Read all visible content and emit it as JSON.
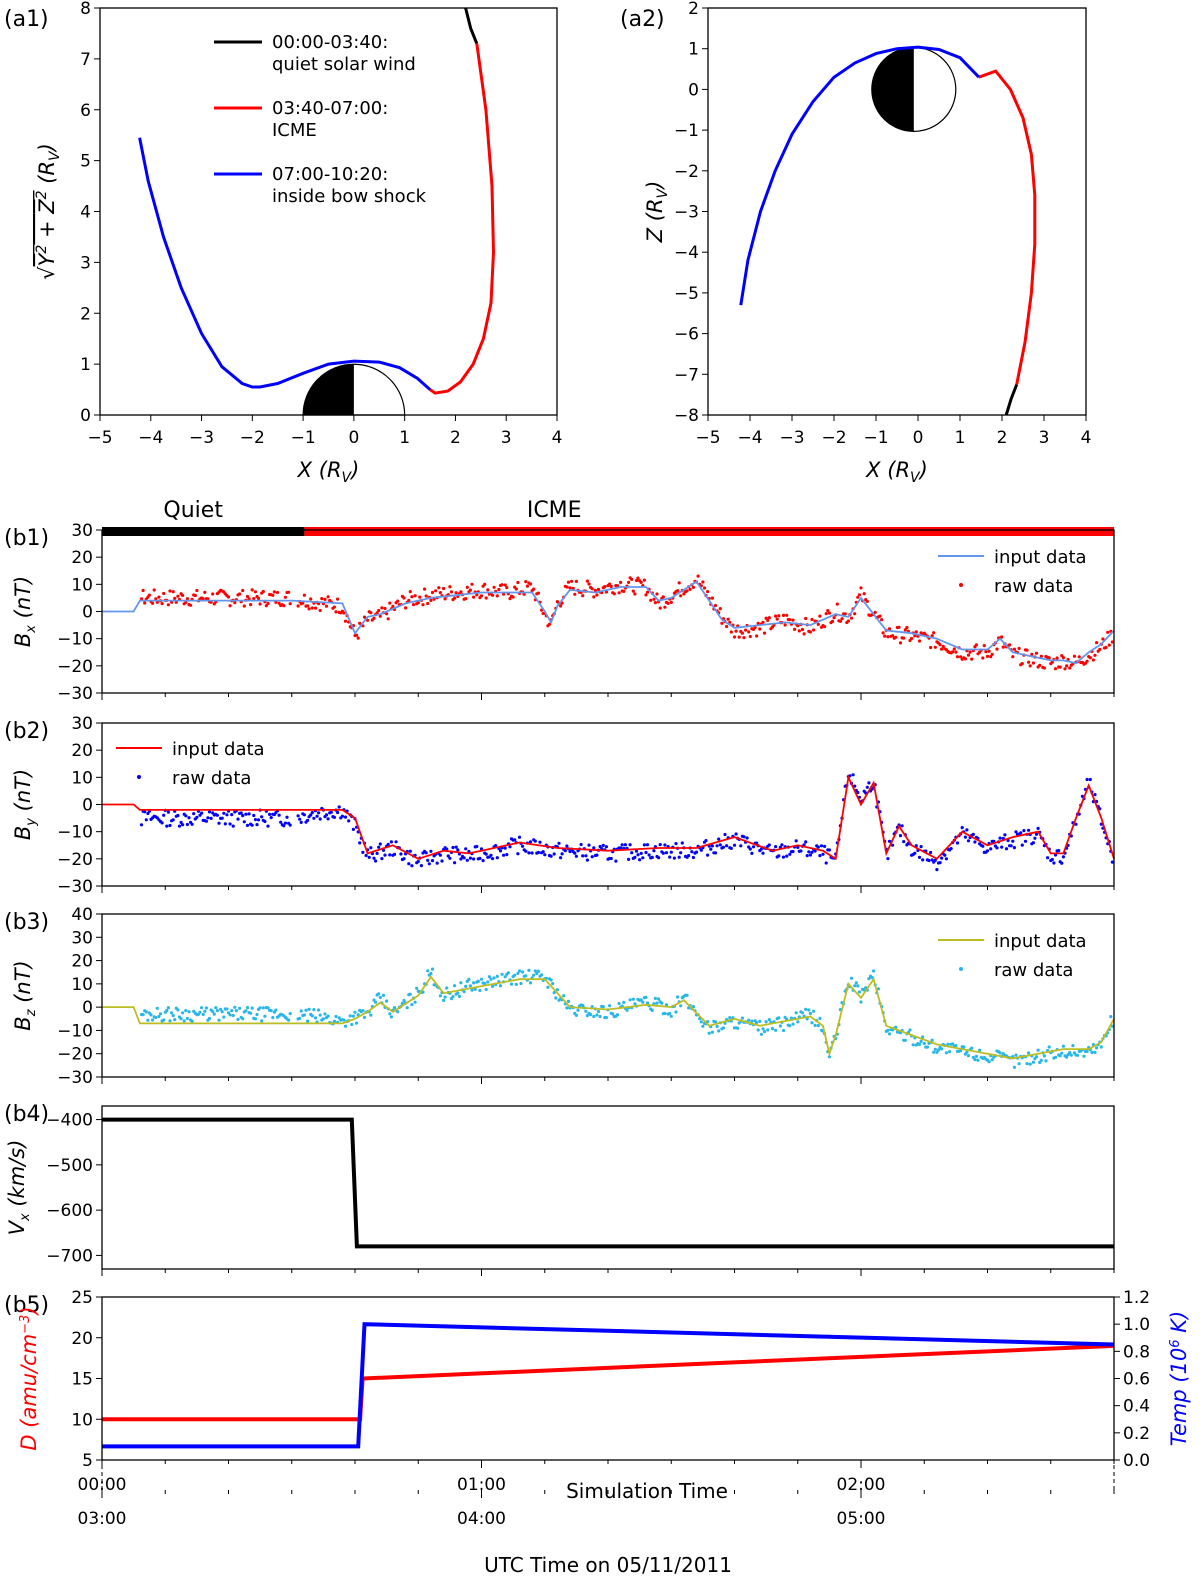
{
  "chart_data": [
    {
      "id": "a1",
      "panel_label": "(a1)",
      "type": "line",
      "xlabel": "X (R_V)",
      "ylabel": "sqrt(Y^2 + Z^2) (R_V)",
      "xlim": [
        -5,
        4
      ],
      "ylim": [
        0,
        8
      ],
      "xticks": [
        "−5",
        "−4",
        "−3",
        "−2",
        "−1",
        "0",
        "1",
        "2",
        "3",
        "4"
      ],
      "yticks": [
        "0",
        "1",
        "2",
        "3",
        "4",
        "5",
        "6",
        "7",
        "8"
      ],
      "legend": [
        {
          "line1": "00:00-03:40:",
          "line2": "quiet solar wind",
          "color": "#000000"
        },
        {
          "line1": "03:40-07:00:",
          "line2": "ICME",
          "color": "#ff0000"
        },
        {
          "line1": "07:00-10:20:",
          "line2": "inside bow shock",
          "color": "#0000ff"
        }
      ],
      "series": [
        {
          "name": "quiet",
          "color": "#000000",
          "x": [
            2.2,
            2.3,
            2.42
          ],
          "y": [
            8.0,
            7.6,
            7.3
          ]
        },
        {
          "name": "ICME",
          "color": "#ff0000",
          "x": [
            2.42,
            2.6,
            2.72,
            2.75,
            2.7,
            2.55,
            2.35,
            2.1,
            1.85,
            1.6,
            1.5
          ],
          "y": [
            7.3,
            6.0,
            4.5,
            3.2,
            2.2,
            1.5,
            1.0,
            0.65,
            0.47,
            0.43,
            0.5
          ]
        },
        {
          "name": "inside bow shock",
          "color": "#0000ff",
          "x": [
            1.5,
            1.25,
            0.9,
            0.5,
            0.0,
            -0.5,
            -1.0,
            -1.5,
            -1.85,
            -2.0,
            -2.2,
            -2.6,
            -3.0,
            -3.4,
            -3.75,
            -4.05,
            -4.22
          ],
          "y": [
            0.5,
            0.72,
            0.93,
            1.04,
            1.06,
            1.0,
            0.82,
            0.62,
            0.55,
            0.55,
            0.62,
            0.95,
            1.6,
            2.5,
            3.5,
            4.6,
            5.45
          ]
        }
      ],
      "venus": {
        "center_x": 0,
        "radius": 1
      }
    },
    {
      "id": "a2",
      "panel_label": "(a2)",
      "type": "line",
      "xlabel": "X (R_V)",
      "ylabel": "Z (R_V)",
      "xlim": [
        -5,
        4
      ],
      "ylim": [
        -8,
        2
      ],
      "xticks": [
        "−5",
        "−4",
        "−3",
        "−2",
        "−1",
        "0",
        "1",
        "2",
        "3",
        "4"
      ],
      "yticks": [
        "−8",
        "−7",
        "−6",
        "−5",
        "−4",
        "−3",
        "−2",
        "−1",
        "0",
        "1",
        "2"
      ],
      "series": [
        {
          "name": "quiet",
          "color": "#000000",
          "x": [
            2.1,
            2.22,
            2.35
          ],
          "y": [
            -8.0,
            -7.6,
            -7.25
          ]
        },
        {
          "name": "ICME",
          "color": "#ff0000",
          "x": [
            2.35,
            2.55,
            2.7,
            2.78,
            2.78,
            2.7,
            2.5,
            2.2,
            1.85,
            1.45
          ],
          "y": [
            -7.25,
            -6.2,
            -5.0,
            -3.8,
            -2.6,
            -1.6,
            -0.7,
            0.0,
            0.45,
            0.3
          ]
        },
        {
          "name": "inside bow shock",
          "color": "#0000ff",
          "x": [
            1.45,
            1.0,
            0.5,
            0.0,
            -0.5,
            -1.0,
            -1.5,
            -2.0,
            -2.5,
            -3.0,
            -3.4,
            -3.75,
            -4.05,
            -4.22
          ],
          "y": [
            0.3,
            0.78,
            0.98,
            1.04,
            1.0,
            0.88,
            0.65,
            0.3,
            -0.3,
            -1.1,
            -2.0,
            -3.0,
            -4.2,
            -5.3
          ]
        }
      ],
      "venus": {
        "center_x": -0.1,
        "center_y": 0,
        "radius": 1
      }
    },
    {
      "id": "b1",
      "panel_label": "(b1)",
      "type": "line+scatter",
      "ylabel": "B_x (nT)",
      "ylim": [
        -30,
        30
      ],
      "yticks": [
        "−30",
        "−20",
        "−10",
        "0",
        "10",
        "20",
        "30"
      ],
      "x_unit": "simulation minutes",
      "xlim": [
        0,
        160
      ],
      "legend": [
        "input data",
        "raw data"
      ],
      "series": [
        {
          "name": "input data",
          "color": "#6495ed",
          "x": [
            0,
            5,
            6,
            30,
            38,
            40,
            42,
            44,
            48,
            52,
            56,
            60,
            64,
            68,
            70,
            71,
            72,
            74,
            78,
            82,
            86,
            88,
            90,
            92,
            94,
            96,
            98,
            100,
            104,
            108,
            112,
            116,
            118,
            120,
            124,
            128,
            132,
            136,
            140,
            142,
            144,
            148,
            150,
            152,
            154,
            156,
            158,
            160
          ],
          "y": [
            0,
            0,
            4,
            4,
            3,
            -8,
            -2,
            -1,
            3,
            5,
            6,
            7,
            7,
            7,
            0,
            -4,
            2,
            8,
            7,
            9,
            9,
            4,
            5,
            8,
            11,
            4,
            -3,
            -6,
            -5,
            -4,
            -5,
            -1,
            -2,
            5,
            -7,
            -8,
            -10,
            -14,
            -14,
            -10,
            -15,
            -17,
            -18,
            -18,
            -19,
            -15,
            -12,
            -7
          ]
        },
        {
          "name": "raw data",
          "color": "#ff0000",
          "x": [
            0,
            5,
            6,
            30,
            38,
            40,
            42,
            44,
            48,
            52,
            56,
            60,
            64,
            68,
            70,
            71,
            72,
            74,
            78,
            82,
            86,
            88,
            90,
            92,
            94,
            96,
            98,
            100,
            104,
            108,
            112,
            116,
            118,
            120,
            124,
            128,
            132,
            136,
            140,
            142,
            144,
            148,
            150,
            152,
            154,
            156,
            158,
            160
          ],
          "y": [
            1,
            2,
            5,
            5,
            2,
            -9,
            -3,
            -2,
            4,
            6,
            7,
            8,
            7,
            9,
            -1,
            -5,
            3,
            9,
            8,
            10,
            9,
            3,
            6,
            9,
            12,
            5,
            -2,
            -7,
            -6,
            -3,
            -6,
            0,
            -2,
            6,
            -8,
            -9,
            -11,
            -15,
            -15,
            -11,
            -16,
            -18,
            -19,
            -18,
            -19,
            -16,
            -13,
            -8
          ]
        }
      ]
    },
    {
      "id": "b2",
      "panel_label": "(b2)",
      "type": "line+scatter",
      "ylabel": "B_y (nT)",
      "ylim": [
        -30,
        30
      ],
      "yticks": [
        "−30",
        "−20",
        "−10",
        "0",
        "10",
        "20",
        "30"
      ],
      "xlim": [
        0,
        160
      ],
      "legend": [
        "input data",
        "raw data"
      ],
      "series": [
        {
          "name": "input data",
          "color": "#ff0000",
          "x": [
            0,
            5,
            6,
            30,
            38,
            40,
            42,
            46,
            50,
            54,
            58,
            60,
            66,
            72,
            80,
            88,
            94,
            100,
            106,
            110,
            114,
            116,
            118,
            120,
            122,
            124,
            126,
            128,
            132,
            136,
            140,
            144,
            148,
            150,
            152,
            154,
            156,
            158,
            160
          ],
          "y": [
            0,
            0,
            -2,
            -2,
            -2,
            -5,
            -18,
            -15,
            -20,
            -17,
            -18,
            -17,
            -14,
            -16,
            -17,
            -16,
            -16,
            -12,
            -17,
            -15,
            -17,
            -20,
            10,
            0,
            8,
            -18,
            -8,
            -15,
            -20,
            -10,
            -15,
            -12,
            -10,
            -18,
            -18,
            -5,
            7,
            -5,
            -20
          ]
        },
        {
          "name": "raw data",
          "color": "#0000ff",
          "x": [
            0,
            5,
            6,
            30,
            34,
            38,
            40,
            42,
            46,
            50,
            54,
            58,
            60,
            66,
            72,
            80,
            88,
            94,
            100,
            106,
            110,
            114,
            116,
            118,
            120,
            122,
            124,
            126,
            128,
            132,
            136,
            140,
            144,
            148,
            150,
            152,
            154,
            156,
            158,
            160
          ],
          "y": [
            -6,
            -7,
            -5,
            -5,
            -3,
            -2,
            -8,
            -19,
            -16,
            -21,
            -18,
            -19,
            -18,
            -15,
            -17,
            -18,
            -17,
            -17,
            -13,
            -18,
            -16,
            -18,
            -21,
            12,
            2,
            9,
            -19,
            -9,
            -16,
            -21,
            -11,
            -16,
            -13,
            -11,
            -19,
            -19,
            -6,
            8,
            -6,
            -21
          ]
        }
      ]
    },
    {
      "id": "b3",
      "panel_label": "(b3)",
      "type": "line+scatter",
      "ylabel": "B_z (nT)",
      "ylim": [
        -30,
        40
      ],
      "yticks": [
        "−30",
        "−20",
        "−10",
        "0",
        "10",
        "20",
        "30",
        "40"
      ],
      "xlim": [
        0,
        160
      ],
      "legend": [
        "input data",
        "raw data"
      ],
      "series": [
        {
          "name": "input data",
          "color": "#bcbd22",
          "x": [
            0,
            5,
            6,
            30,
            38,
            40,
            42,
            44,
            46,
            50,
            52,
            54,
            58,
            62,
            66,
            70,
            74,
            80,
            86,
            90,
            92,
            96,
            100,
            104,
            108,
            112,
            114,
            115,
            116,
            118,
            120,
            122,
            124,
            128,
            132,
            136,
            140,
            144,
            148,
            152,
            156,
            158,
            160
          ],
          "y": [
            0,
            0,
            -7,
            -7,
            -7,
            -5,
            -2,
            2,
            -2,
            5,
            13,
            6,
            8,
            10,
            12,
            12,
            0,
            -1,
            1,
            0,
            3,
            -8,
            -5,
            -8,
            -6,
            -4,
            -8,
            -20,
            -12,
            10,
            4,
            12,
            -8,
            -12,
            -16,
            -18,
            -20,
            -22,
            -20,
            -18,
            -18,
            -15,
            -5
          ]
        },
        {
          "name": "raw data",
          "color": "#29b6e8",
          "x": [
            0,
            5,
            6,
            30,
            34,
            38,
            40,
            42,
            44,
            46,
            50,
            52,
            54,
            58,
            62,
            66,
            70,
            74,
            80,
            86,
            90,
            92,
            96,
            100,
            104,
            108,
            112,
            114,
            115,
            116,
            118,
            120,
            122,
            124,
            128,
            132,
            136,
            140,
            144,
            148,
            152,
            156,
            158,
            160
          ],
          "y": [
            -2,
            -1,
            -3,
            -3,
            -4,
            -6,
            -4,
            -3,
            4,
            -3,
            6,
            15,
            5,
            9,
            11,
            13,
            13,
            -1,
            -2,
            2,
            -1,
            4,
            -9,
            -6,
            -9,
            -7,
            -3,
            -9,
            -21,
            -13,
            12,
            5,
            14,
            -9,
            -13,
            -17,
            -19,
            -21,
            -23,
            -21,
            -19,
            -19,
            -16,
            -4
          ]
        }
      ]
    },
    {
      "id": "b4",
      "panel_label": "(b4)",
      "type": "line",
      "ylabel": "V_x (km/s)",
      "ylim": [
        -730,
        -370
      ],
      "yticks": [
        "−700",
        "−600",
        "−500",
        "−400"
      ],
      "xlim": [
        0,
        160
      ],
      "series": [
        {
          "name": "Vx",
          "color": "#000000",
          "x": [
            0,
            39.5,
            40.3,
            160
          ],
          "y": [
            -400,
            -400,
            -680,
            -680
          ]
        }
      ]
    },
    {
      "id": "b5",
      "panel_label": "(b5)",
      "type": "line",
      "ylabel_left": "D (amu/cm^-3)",
      "ylabel_right": "Temp (10^6 K)",
      "ylim_left": [
        5,
        25
      ],
      "ylim_right": [
        0,
        1.2
      ],
      "yticks_left": [
        "5",
        "10",
        "15",
        "20",
        "25"
      ],
      "yticks_right": [
        "0.0",
        "0.2",
        "0.4",
        "0.6",
        "0.8",
        "1.0",
        "1.2"
      ],
      "xlim": [
        0,
        160
      ],
      "series": [
        {
          "name": "D",
          "color": "#ff0000",
          "axis": "left",
          "x": [
            0,
            40.8,
            41.2,
            160
          ],
          "y": [
            10,
            10,
            15,
            19
          ]
        },
        {
          "name": "Temp",
          "color": "#0000ff",
          "axis": "right",
          "x": [
            0,
            40.5,
            41.5,
            160
          ],
          "y": [
            0.1,
            0.1,
            1.0,
            0.85
          ]
        }
      ],
      "xlabel_sim": "Simulation Time",
      "xticks_sim": [
        "00:00",
        "01:00",
        "02:00"
      ],
      "xlabel_utc": "UTC Time on 05/11/2011",
      "xticks_utc": [
        "03:00",
        "04:00",
        "05:00"
      ]
    }
  ],
  "timeline": [
    {
      "label": "Quiet",
      "color": "#000000",
      "start": 0,
      "end": 32
    },
    {
      "label": "ICME",
      "color": "#ff0000",
      "start": 32,
      "end": 160
    }
  ]
}
